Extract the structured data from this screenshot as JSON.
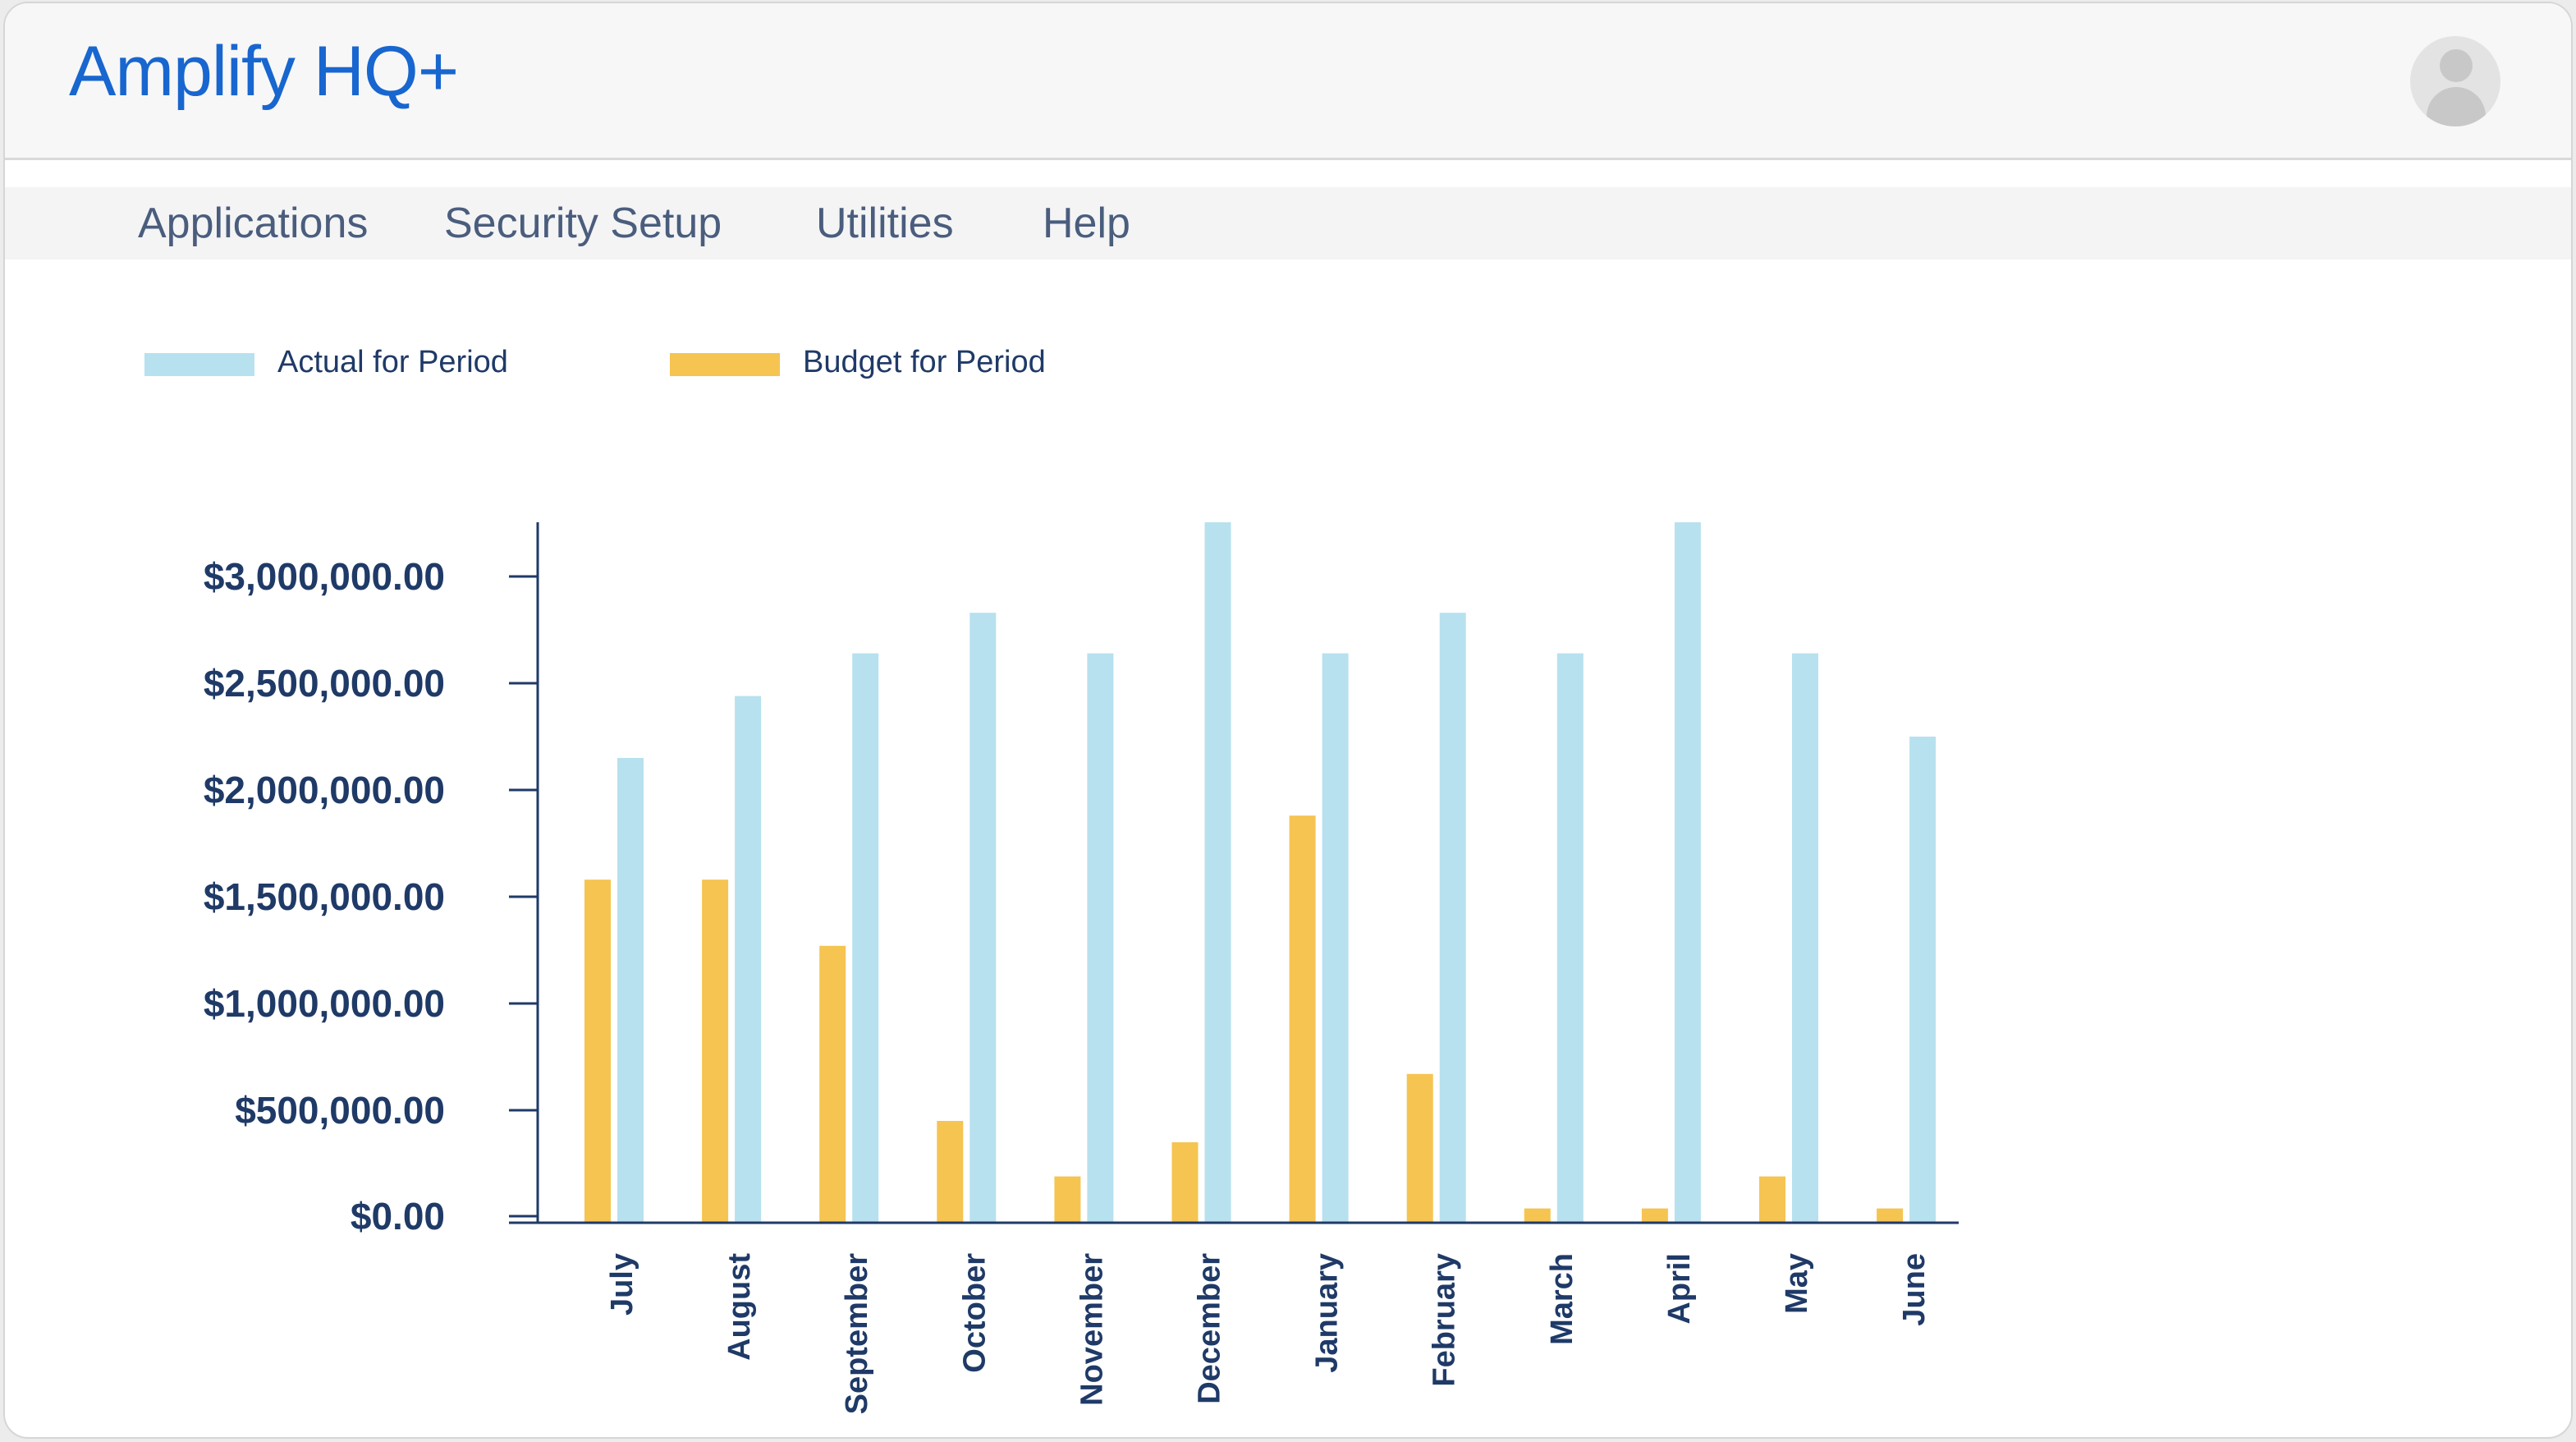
{
  "app": {
    "title": "Amplify HQ+"
  },
  "header": {
    "avatar_icon": "user-avatar-icon"
  },
  "menu": [
    {
      "label": "Applications"
    },
    {
      "label": "Security Setup"
    },
    {
      "label": "Utilities"
    },
    {
      "label": "Help"
    }
  ],
  "colors": {
    "brand": "#1866cf",
    "actual": "#b7e1ef",
    "budget": "#f5c451",
    "axis": "#1f3a67"
  },
  "chart_data": {
    "type": "bar",
    "categories": [
      "July",
      "August",
      "September",
      "October",
      "November",
      "December",
      "January",
      "February",
      "March",
      "April",
      "May",
      "June"
    ],
    "series": [
      {
        "name": "Budget for Period",
        "values": [
          1580000,
          1580000,
          1270000,
          450000,
          190000,
          350000,
          1880000,
          670000,
          40000,
          40000,
          190000,
          40000
        ]
      },
      {
        "name": "Actual for Period",
        "values": [
          2150000,
          2440000,
          2640000,
          2830000,
          2640000,
          3270000,
          2640000,
          2830000,
          2640000,
          3270000,
          2640000,
          2250000
        ]
      }
    ],
    "legend": [
      "Actual for Period",
      "Budget for Period"
    ],
    "y_ticks": [
      "$0.00",
      "$500,000.00",
      "$1,000,000.00",
      "$1,500,000.00",
      "$2,000,000.00",
      "$2,500,000.00",
      "$3,000,000.00"
    ],
    "y_tick_values": [
      0,
      500000,
      1000000,
      1500000,
      2000000,
      2500000,
      3000000
    ],
    "ylim": [
      0,
      3270000
    ],
    "legend_position": "top-left",
    "grid": false
  }
}
